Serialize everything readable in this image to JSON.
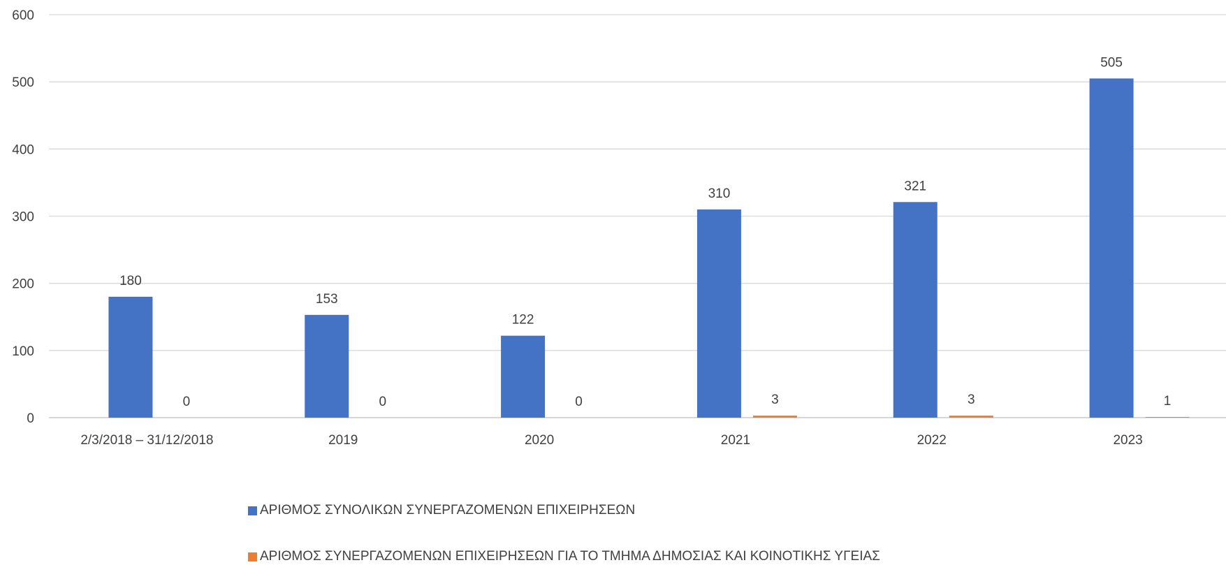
{
  "chart_data": {
    "type": "bar",
    "categories": [
      "2/3/2018 – 31/12/2018",
      "2019",
      "2020",
      "2021",
      "2022",
      "2023"
    ],
    "series": [
      {
        "name": "ΑΡΙΘΜΟΣ ΣΥΝΟΛΙΚΩΝ ΣΥΝΕΡΓΑΖΟΜΕΝΩΝ ΕΠΙΧΕΙΡΗΣΕΩΝ",
        "values": [
          180,
          153,
          122,
          310,
          321,
          505
        ],
        "color": "#4472C4"
      },
      {
        "name": "ΑΡΙΘΜΟΣ  ΣΥΝΕΡΓΑΖΟΜΕΝΩΝ ΕΠΙΧΕΙΡΗΣΕΩΝ ΓΙΑ ΤΟ ΤΜΗΜΑ ΔΗΜΟΣΙΑΣ ΚΑΙ ΚΟΙΝΟΤΙΚΗΣ ΥΓΕΙΑΣ",
        "values": [
          0,
          0,
          0,
          3,
          3,
          1
        ],
        "color": "#ED7D31"
      }
    ],
    "yticks": [
      "0",
      "100",
      "200",
      "300",
      "400",
      "500",
      "600"
    ],
    "ylim": [
      0,
      600
    ],
    "grid": true,
    "legend_position": "bottom",
    "data_labels": true,
    "title": "",
    "xlabel": "",
    "ylabel": ""
  }
}
